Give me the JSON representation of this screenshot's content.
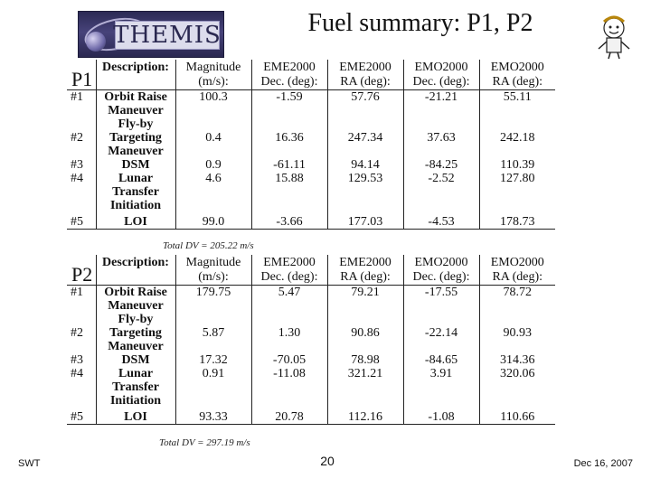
{
  "header": {
    "logo_text": "THEMIS",
    "title": "Fuel summary: P1, P2"
  },
  "columns": {
    "description": "Description:",
    "magnitude": [
      "Magnitude",
      "(m/s):"
    ],
    "eme_dec": [
      "EME2000",
      "Dec. (deg):"
    ],
    "eme_ra": [
      "EME2000",
      "RA (deg):"
    ],
    "emo_dec": [
      "EMO2000",
      "Dec. (deg):"
    ],
    "emo_ra": [
      "EMO2000",
      "RA (deg):"
    ]
  },
  "p1": {
    "label": "P1",
    "total_dv": "Total DV = 205.22 m/s",
    "rows": [
      {
        "num": "#1",
        "desc": [
          "Orbit Raise",
          "Maneuver"
        ],
        "mag": "100.3",
        "eme_dec": "-1.59",
        "eme_ra": "57.76",
        "emo_dec": "-21.21",
        "emo_ra": "55.11"
      },
      {
        "num": "#2",
        "desc": [
          "Fly-by",
          "Targeting",
          "Maneuver"
        ],
        "mag": "0.4",
        "eme_dec": "16.36",
        "eme_ra": "247.34",
        "emo_dec": "37.63",
        "emo_ra": "242.18"
      },
      {
        "num": "#3",
        "desc": [
          "DSM"
        ],
        "mag": "0.9",
        "eme_dec": "-61.11",
        "eme_ra": "94.14",
        "emo_dec": "-84.25",
        "emo_ra": "110.39"
      },
      {
        "num": "#4",
        "desc": [
          "Lunar",
          "Transfer",
          "Initiation"
        ],
        "mag": "4.6",
        "eme_dec": "15.88",
        "eme_ra": "129.53",
        "emo_dec": "-2.52",
        "emo_ra": "127.80"
      },
      {
        "num": "#5",
        "desc": [
          "LOI"
        ],
        "mag": "99.0",
        "eme_dec": "-3.66",
        "eme_ra": "177.03",
        "emo_dec": "-4.53",
        "emo_ra": "178.73"
      }
    ]
  },
  "p2": {
    "label": "P2",
    "total_dv": "Total DV = 297.19 m/s",
    "rows": [
      {
        "num": "#1",
        "desc": [
          "Orbit Raise",
          "Maneuver"
        ],
        "mag": "179.75",
        "eme_dec": "5.47",
        "eme_ra": "79.21",
        "emo_dec": "-17.55",
        "emo_ra": "78.72"
      },
      {
        "num": "#2",
        "desc": [
          "Fly-by",
          "Targeting",
          "Maneuver"
        ],
        "mag": "5.87",
        "eme_dec": "1.30",
        "eme_ra": "90.86",
        "emo_dec": "-22.14",
        "emo_ra": "90.93"
      },
      {
        "num": "#3",
        "desc": [
          "DSM"
        ],
        "mag": "17.32",
        "eme_dec": "-70.05",
        "eme_ra": "78.98",
        "emo_dec": "-84.65",
        "emo_ra": "314.36"
      },
      {
        "num": "#4",
        "desc": [
          "Lunar",
          "Transfer",
          "Initiation"
        ],
        "mag": "0.91",
        "eme_dec": "-11.08",
        "eme_ra": "321.21",
        "emo_dec": "3.91",
        "emo_ra": "320.06"
      },
      {
        "num": "#5",
        "desc": [
          "LOI"
        ],
        "mag": "93.33",
        "eme_dec": "20.78",
        "eme_ra": "112.16",
        "emo_dec": "-1.08",
        "emo_ra": "110.66"
      }
    ]
  },
  "footer": {
    "left": "SWT",
    "page": "20",
    "right": "Dec 16, 2007"
  }
}
